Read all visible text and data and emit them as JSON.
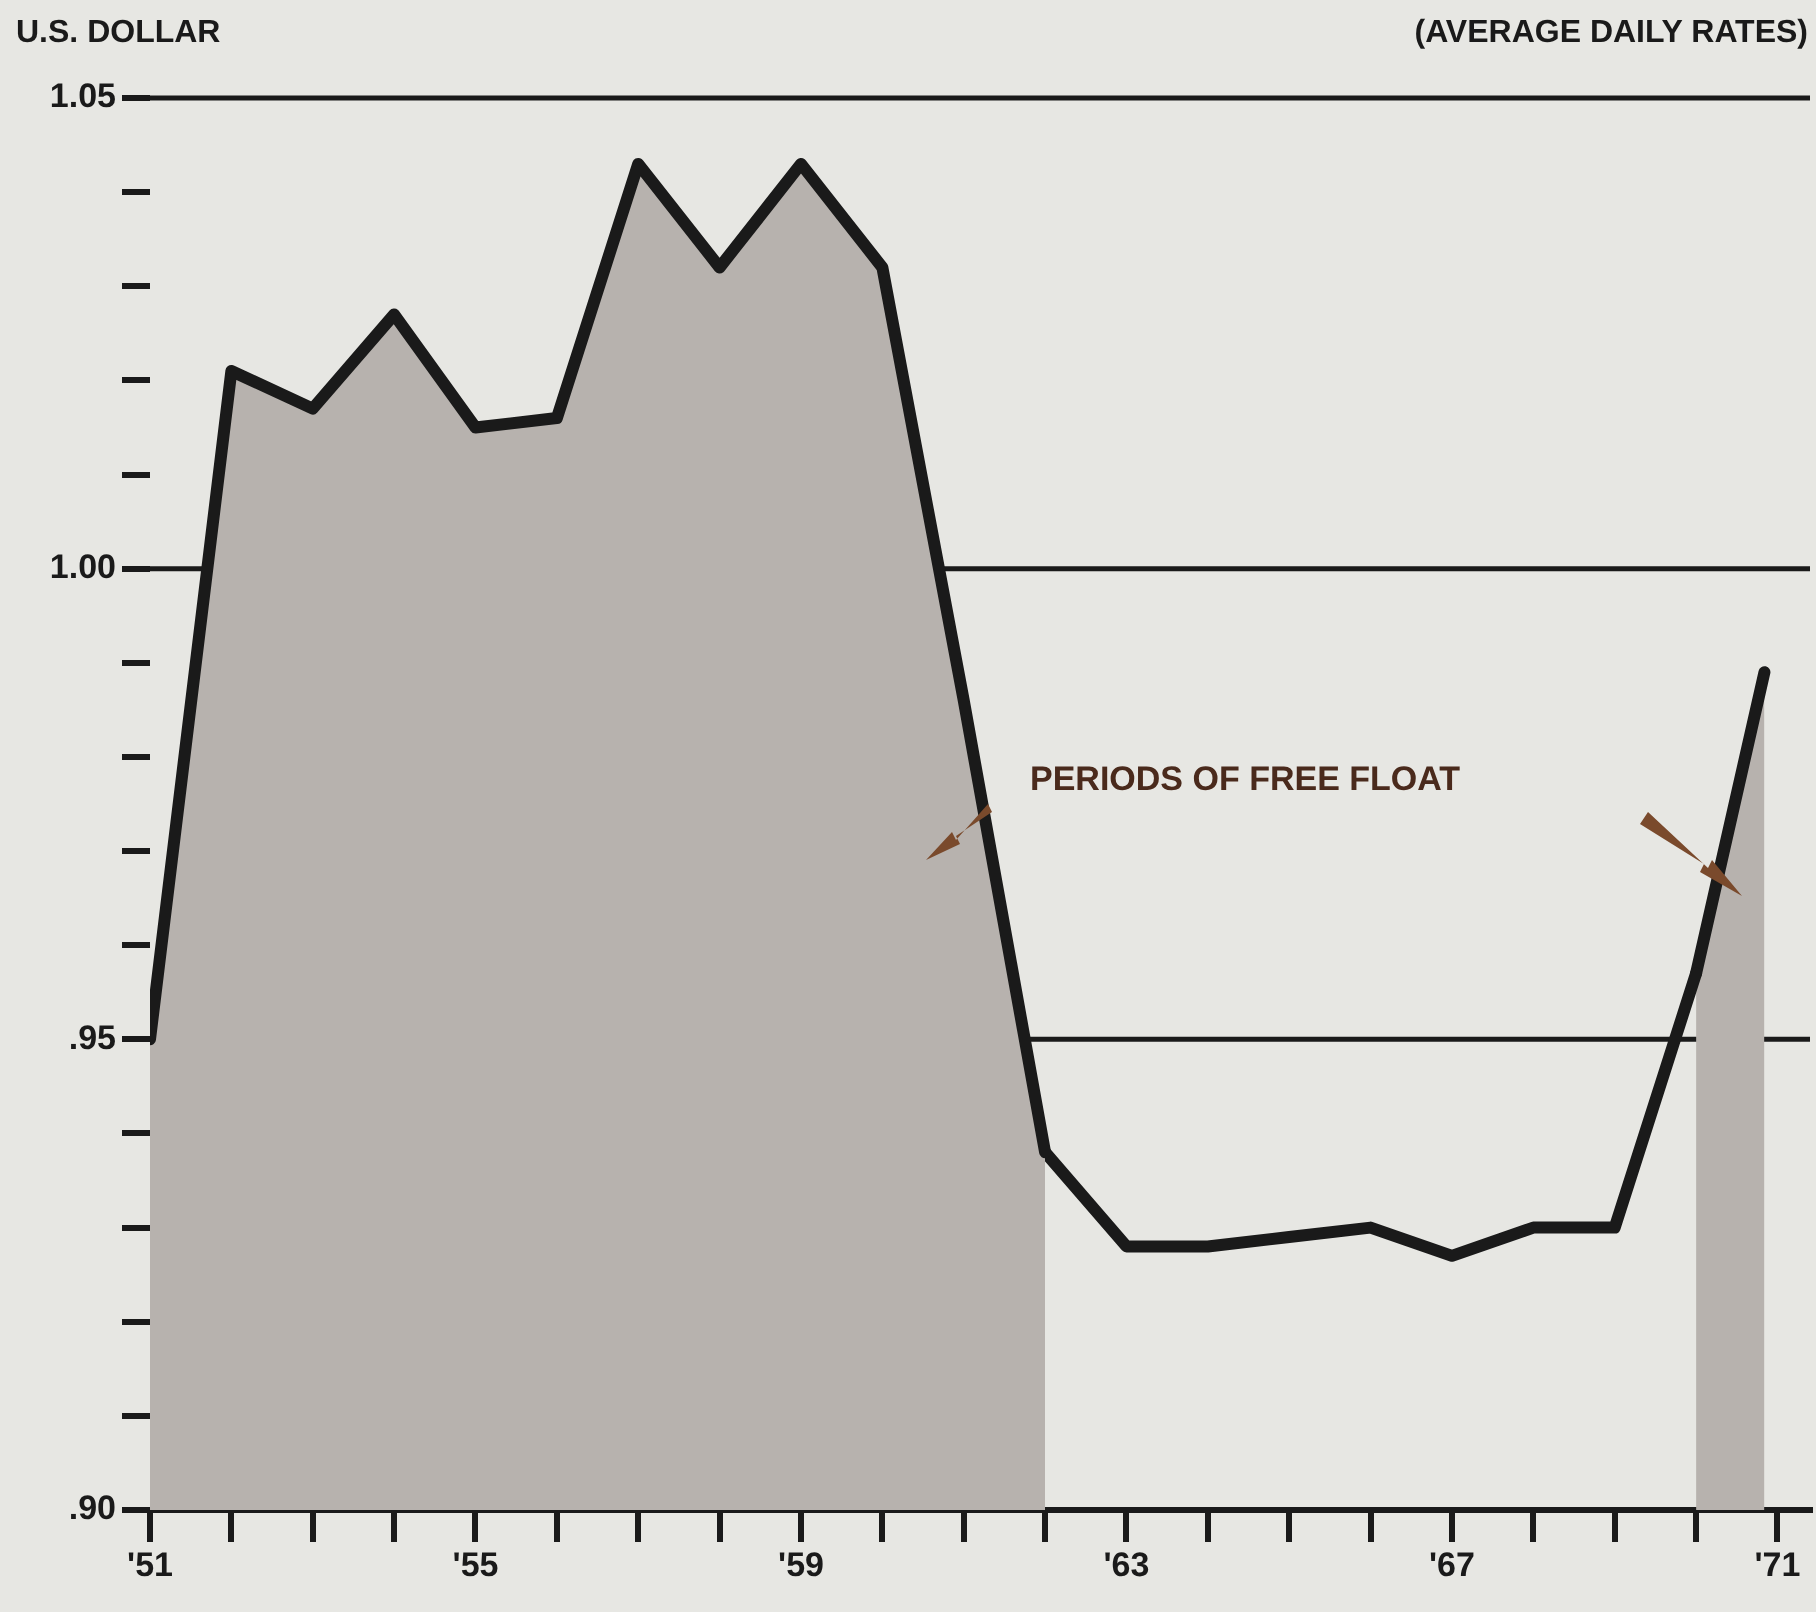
{
  "chart_data": {
    "type": "line",
    "ylabel": "U.S. DOLLAR",
    "subtitle": "(AVERAGE DAILY RATES)",
    "series": [
      {
        "type": "area",
        "color": "#b7b2ae",
        "x": [
          1951,
          1952,
          1953,
          1954,
          1955,
          1956,
          1957,
          1958,
          1959,
          1960,
          1961,
          1962
        ],
        "values": [
          0.95,
          1.021,
          1.017,
          1.027,
          1.015,
          1.016,
          1.043,
          1.032,
          1.043,
          1.032,
          0.986,
          0.938
        ]
      },
      {
        "color": "#1a1a1a",
        "x": [
          1962,
          1963,
          1964,
          1965,
          1966,
          1967,
          1968,
          1969,
          1970
        ],
        "values": [
          0.938,
          0.928,
          0.928,
          0.929,
          0.93,
          0.927,
          0.93,
          0.93,
          0.957
        ]
      },
      {
        "type": "area",
        "color": "#b7b2ae",
        "x": [
          1970,
          1970.84
        ],
        "values": [
          0.957,
          0.989
        ]
      }
    ],
    "xlim": [
      1951,
      1971.4
    ],
    "xticks": [
      {
        "value": 1951,
        "label": "'51"
      },
      {
        "value": 1952,
        "label": null
      },
      {
        "value": 1953,
        "label": null
      },
      {
        "value": 1954,
        "label": null
      },
      {
        "value": 1955,
        "label": "'55"
      },
      {
        "value": 1956,
        "label": null
      },
      {
        "value": 1957,
        "label": null
      },
      {
        "value": 1958,
        "label": null
      },
      {
        "value": 1959,
        "label": "'59"
      },
      {
        "value": 1960,
        "label": null
      },
      {
        "value": 1961,
        "label": null
      },
      {
        "value": 1962,
        "label": null
      },
      {
        "value": 1963,
        "label": "'63"
      },
      {
        "value": 1964,
        "label": null
      },
      {
        "value": 1965,
        "label": null
      },
      {
        "value": 1966,
        "label": null
      },
      {
        "value": 1967,
        "label": "'67"
      },
      {
        "value": 1968,
        "label": null
      },
      {
        "value": 1969,
        "label": null
      },
      {
        "value": 1970,
        "label": null
      },
      {
        "value": 1971,
        "label": "'71"
      }
    ],
    "ylim": [
      0.9,
      1.05
    ],
    "yticks": [
      {
        "value": 0.9,
        "label": ".90"
      },
      {
        "value": 0.91,
        "label": null
      },
      {
        "value": 0.92,
        "label": null
      },
      {
        "value": 0.93,
        "label": null
      },
      {
        "value": 0.94,
        "label": null
      },
      {
        "value": 0.95,
        "label": ".95"
      },
      {
        "value": 0.96,
        "label": null
      },
      {
        "value": 0.97,
        "label": null
      },
      {
        "value": 0.98,
        "label": null
      },
      {
        "value": 0.99,
        "label": null
      },
      {
        "value": 1.0,
        "label": "1.00"
      },
      {
        "value": 1.01,
        "label": null
      },
      {
        "value": 1.02,
        "label": null
      },
      {
        "value": 1.03,
        "label": null
      },
      {
        "value": 1.04,
        "label": null
      },
      {
        "value": 1.05,
        "label": "1.05"
      }
    ],
    "ref_lines": [
      {
        "axis": "y",
        "value": 1.0,
        "color": "#1a1a1a"
      },
      {
        "axis": "y",
        "value": 0.95,
        "color": "#1a1a1a"
      }
    ],
    "annotations": [
      "PERIODS OF FREE FLOAT"
    ],
    "marker": "none",
    "line_style": "solid",
    "grid": false,
    "legend": false
  }
}
